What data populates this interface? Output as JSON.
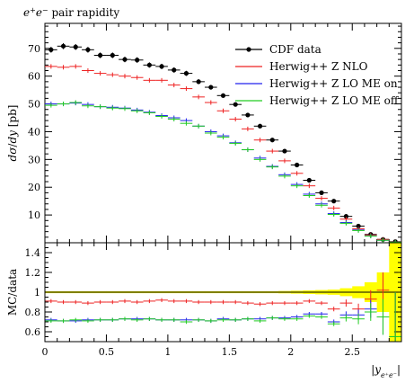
{
  "chart_data": {
    "type": "scatter",
    "title": "e⁺e⁻ pair rapidity",
    "xlabel": "|y_e⁺e⁻|",
    "ylabel": "dσ/dy [pb]",
    "ratio_ylabel": "MC/data",
    "xlim": [
      0,
      2.9
    ],
    "ylim": [
      0,
      79
    ],
    "ratio_ylim": [
      0.5,
      1.5
    ],
    "legend_position": "top-right",
    "x_ticks": [
      0,
      0.5,
      1,
      1.5,
      2,
      2.5
    ],
    "x_tick_labels": [
      "0",
      "0.5",
      "1",
      "1.5",
      "2",
      "2.5"
    ],
    "y_ticks": [
      10,
      20,
      30,
      40,
      50,
      60,
      70
    ],
    "y_tick_labels": [
      "10",
      "20",
      "30",
      "40",
      "50",
      "60",
      "70"
    ],
    "ratio_ticks": [
      0.6,
      0.8,
      1.0,
      1.2,
      1.4
    ],
    "ratio_tick_labels": [
      "0.6",
      "0.8",
      "1",
      "1.2",
      "1.4"
    ],
    "bin_width": 0.1,
    "x": [
      0.05,
      0.15,
      0.25,
      0.35,
      0.45,
      0.55,
      0.65,
      0.75,
      0.85,
      0.95,
      1.05,
      1.15,
      1.25,
      1.35,
      1.45,
      1.55,
      1.65,
      1.75,
      1.85,
      1.95,
      2.05,
      2.15,
      2.25,
      2.35,
      2.45,
      2.55,
      2.65,
      2.75,
      2.85
    ],
    "series": [
      {
        "name": "CDF data",
        "color": "#000000",
        "values": [
          69.5,
          70.8,
          70.5,
          69.5,
          67.5,
          67.5,
          66.0,
          65.8,
          64.0,
          63.5,
          62.2,
          61.0,
          58.0,
          56.0,
          53.0,
          49.8,
          46.0,
          42.0,
          37.0,
          33.0,
          28.0,
          22.5,
          18.0,
          15.0,
          9.5,
          6.0,
          3.0,
          1.2,
          0.4
        ]
      },
      {
        "name": "Herwig++ Z NLO",
        "color": "#ee2222",
        "values": [
          63.5,
          63.2,
          63.5,
          62.0,
          61.0,
          60.5,
          60.0,
          59.5,
          58.5,
          58.5,
          56.8,
          55.5,
          52.5,
          50.5,
          47.5,
          44.5,
          41.0,
          37.0,
          33.0,
          29.5,
          25.0,
          20.5,
          16.0,
          12.5,
          8.5,
          5.0,
          2.8,
          1.2,
          0.3
        ]
      },
      {
        "name": "Herwig++ Z LO ME on",
        "color": "#2222ee",
        "values": [
          50.0,
          50.0,
          50.3,
          49.8,
          49.0,
          48.8,
          48.5,
          47.8,
          47.0,
          45.8,
          45.0,
          44.0,
          42.0,
          40.0,
          38.5,
          36.0,
          33.5,
          30.5,
          27.5,
          24.5,
          21.0,
          17.5,
          14.0,
          10.5,
          7.3,
          4.6,
          2.5,
          0.9,
          0.22
        ]
      },
      {
        "name": "Herwig++ Z LO ME off",
        "color": "#22cc22",
        "values": [
          49.5,
          50.0,
          50.5,
          49.3,
          49.0,
          48.5,
          48.3,
          47.5,
          46.8,
          45.5,
          44.5,
          43.0,
          42.0,
          39.5,
          38.0,
          35.8,
          33.5,
          30.0,
          27.3,
          24.0,
          20.5,
          17.0,
          13.5,
          10.2,
          7.0,
          4.4,
          2.4,
          0.9,
          0.22
        ]
      }
    ],
    "ratio_series": [
      {
        "name": "Herwig++ Z NLO",
        "color": "#ee2222",
        "values": [
          0.91,
          0.9,
          0.9,
          0.89,
          0.9,
          0.9,
          0.91,
          0.9,
          0.91,
          0.92,
          0.91,
          0.91,
          0.9,
          0.9,
          0.9,
          0.9,
          0.89,
          0.88,
          0.89,
          0.89,
          0.89,
          0.91,
          0.89,
          0.83,
          0.89,
          0.83,
          0.93,
          1.02,
          0.55
        ]
      },
      {
        "name": "Herwig++ Z LO ME on",
        "color": "#2222ee",
        "values": [
          0.72,
          0.71,
          0.71,
          0.72,
          0.72,
          0.72,
          0.73,
          0.73,
          0.73,
          0.72,
          0.72,
          0.72,
          0.72,
          0.71,
          0.73,
          0.72,
          0.73,
          0.73,
          0.74,
          0.74,
          0.75,
          0.78,
          0.78,
          0.7,
          0.77,
          0.77,
          0.83,
          0.75,
          0.55
        ]
      },
      {
        "name": "Herwig++ Z LO ME off",
        "color": "#22cc22",
        "values": [
          0.71,
          0.71,
          0.72,
          0.71,
          0.72,
          0.72,
          0.73,
          0.72,
          0.73,
          0.72,
          0.72,
          0.7,
          0.72,
          0.71,
          0.72,
          0.72,
          0.73,
          0.71,
          0.74,
          0.73,
          0.73,
          0.76,
          0.75,
          0.68,
          0.74,
          0.73,
          0.8,
          0.75,
          0.55
        ]
      }
    ],
    "ratio_uncertainty_band": {
      "color": "#ffff00",
      "half_width": [
        0.01,
        0.01,
        0.01,
        0.01,
        0.01,
        0.01,
        0.01,
        0.01,
        0.01,
        0.01,
        0.01,
        0.01,
        0.01,
        0.01,
        0.01,
        0.01,
        0.01,
        0.01,
        0.01,
        0.012,
        0.015,
        0.018,
        0.022,
        0.026,
        0.04,
        0.06,
        0.1,
        0.2,
        0.5
      ]
    }
  }
}
